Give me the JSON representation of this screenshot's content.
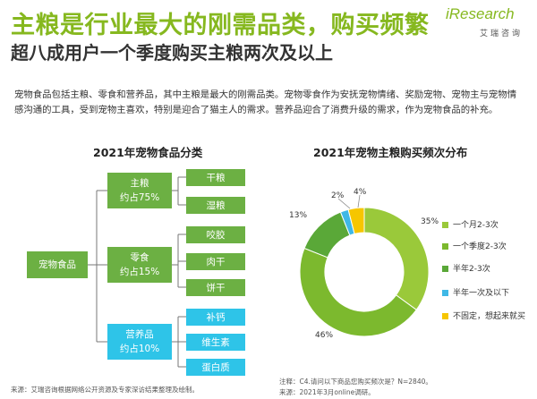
{
  "header": {
    "title": "主粮是行业最大的刚需品类，购买频繁",
    "subtitle": "超八成用户一个季度购买主粮两次及以上",
    "intro": "宠物食品包括主粮、零食和营养品，其中主粮是最大的刚需品类。宠物零食作为安抚宠物情绪、奖励宠物、宠物主与宠物情感沟通的工具，受到宠物主喜欢，特别是迎合了猫主人的需求。营养品迎合了消费升级的需求，作为宠物食品的补充。"
  },
  "logo": {
    "word": "iResearch",
    "sub": "艾瑞咨询"
  },
  "tree": {
    "heading": "2021年宠物食品分类",
    "root": "宠物食品",
    "groups": [
      {
        "name": "主粮",
        "share": "约占75%",
        "color": "#6cb043",
        "items": [
          "干粮",
          "湿粮"
        ]
      },
      {
        "name": "零食",
        "share": "约占15%",
        "color": "#6cb043",
        "items": [
          "咬胶",
          "肉干",
          "饼干"
        ]
      },
      {
        "name": "营养品",
        "share": "约占10%",
        "color": "#2ec4e8",
        "items": [
          "补钙",
          "维生素",
          "蛋白质"
        ]
      }
    ]
  },
  "chart_data": {
    "type": "pie",
    "title": "2021年宠物主粮购买频次分布",
    "donut": true,
    "categories": [
      "一个月2-3次",
      "一个季度2-3次",
      "半年2-3次",
      "半年一次及以下",
      "不固定，想起来就买"
    ],
    "values": [
      35,
      46,
      13,
      2,
      4
    ],
    "labels": [
      "35%",
      "46%",
      "13%",
      "2%",
      "4%"
    ],
    "colors": [
      "#9ac93a",
      "#7cb92e",
      "#5aa838",
      "#3fb8e6",
      "#f6c600"
    ],
    "legend_position": "right"
  },
  "footer": {
    "source_left": "来源：艾瑞咨询根据网络公开资源及专家深访结果整理及绘制。",
    "note_right_1": "注释：C4.请问以下商品您购买频次是？N=2840。",
    "note_right_2": "来源：2021年3月online调研。"
  }
}
